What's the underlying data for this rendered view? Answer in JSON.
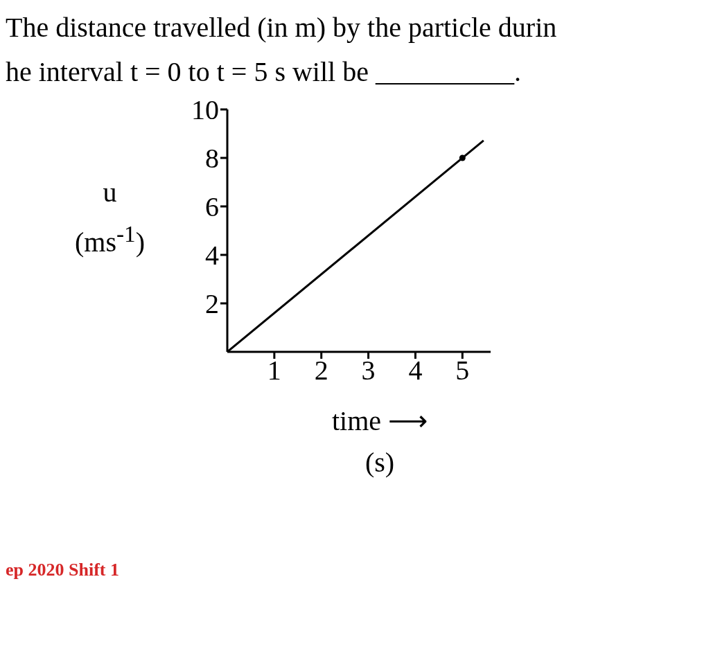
{
  "chart_data": {
    "type": "line",
    "title": "The distance travelled (in m) by the particle durin\nhe interval t = 0 to t = 5 s will be __________.",
    "xlabel": "time ⟶\n(s)",
    "ylabel": "u\n(ms$^{-1}$)",
    "annotations": [
      "ep 2020 Shift 1"
    ],
    "series": [
      {
        "x": [
          0,
          5.45
        ],
        "values": [
          0,
          8.72
        ],
        "color": "#000000",
        "marker": "none"
      },
      {
        "type": "scatter",
        "x": [
          5
        ],
        "values": [
          8
        ],
        "color": "#000000",
        "marker": "circle"
      }
    ],
    "xlim": [
      0,
      5.6
    ],
    "xticks": [
      1,
      2,
      3,
      4,
      5
    ],
    "ylim": [
      0,
      10
    ],
    "yticks": [
      2,
      4,
      6,
      8,
      10
    ]
  }
}
